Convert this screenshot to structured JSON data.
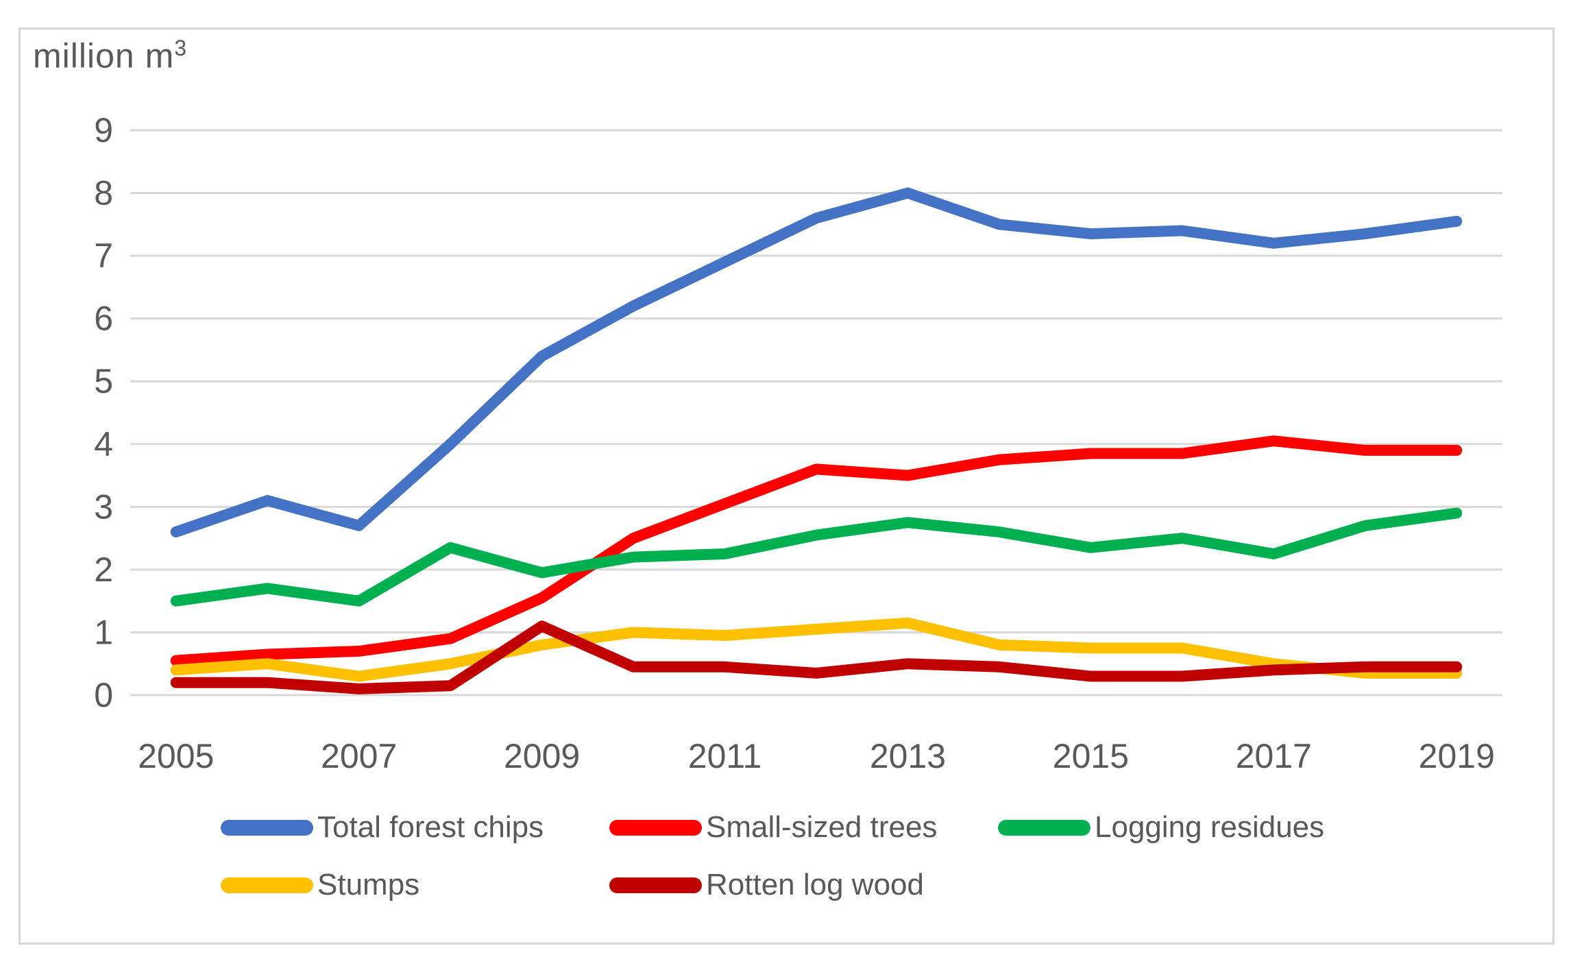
{
  "chart_data": {
    "type": "line",
    "title": {
      "text": "million m",
      "superscript": "3"
    },
    "xlabel": "",
    "ylabel": "million m3",
    "x": [
      2005,
      2006,
      2007,
      2008,
      2009,
      2010,
      2011,
      2012,
      2013,
      2014,
      2015,
      2016,
      2017,
      2018,
      2019
    ],
    "x_tick_labels": [
      "2005",
      "2007",
      "2009",
      "2011",
      "2013",
      "2015",
      "2017",
      "2019"
    ],
    "y_ticks": [
      "0",
      "1",
      "2",
      "3",
      "4",
      "5",
      "6",
      "7",
      "8",
      "9"
    ],
    "ylim": [
      0,
      9
    ],
    "grid": "horizontal",
    "legend_position": "bottom",
    "series": [
      {
        "name": "Total forest chips",
        "color": "#4472C4",
        "values": [
          2.6,
          3.1,
          2.7,
          4.0,
          5.4,
          6.2,
          6.9,
          7.6,
          8.0,
          7.5,
          7.35,
          7.4,
          7.2,
          7.35,
          7.55
        ]
      },
      {
        "name": "Small-sized trees",
        "color": "#FF0000",
        "values": [
          0.55,
          0.65,
          0.7,
          0.9,
          1.55,
          2.5,
          3.05,
          3.6,
          3.5,
          3.75,
          3.85,
          3.85,
          4.05,
          3.9,
          3.9
        ]
      },
      {
        "name": "Logging residues",
        "color": "#00B050",
        "values": [
          1.5,
          1.7,
          1.5,
          2.35,
          1.95,
          2.2,
          2.25,
          2.55,
          2.75,
          2.6,
          2.35,
          2.5,
          2.25,
          2.7,
          2.9
        ]
      },
      {
        "name": "Stumps",
        "color": "#FFC000",
        "values": [
          0.4,
          0.5,
          0.3,
          0.5,
          0.8,
          1.0,
          0.95,
          1.05,
          1.15,
          0.8,
          0.75,
          0.75,
          0.5,
          0.35,
          0.35
        ]
      },
      {
        "name": "Rotten log wood",
        "color": "#C00000",
        "values": [
          0.2,
          0.2,
          0.1,
          0.15,
          1.1,
          0.45,
          0.45,
          0.35,
          0.5,
          0.45,
          0.3,
          0.3,
          0.4,
          0.45,
          0.45
        ]
      }
    ],
    "colors": {
      "gridline": "#D9D9D9",
      "axis_text": "#595959",
      "frame_border": "#D7D7D7",
      "background": "#FFFFFF"
    }
  }
}
